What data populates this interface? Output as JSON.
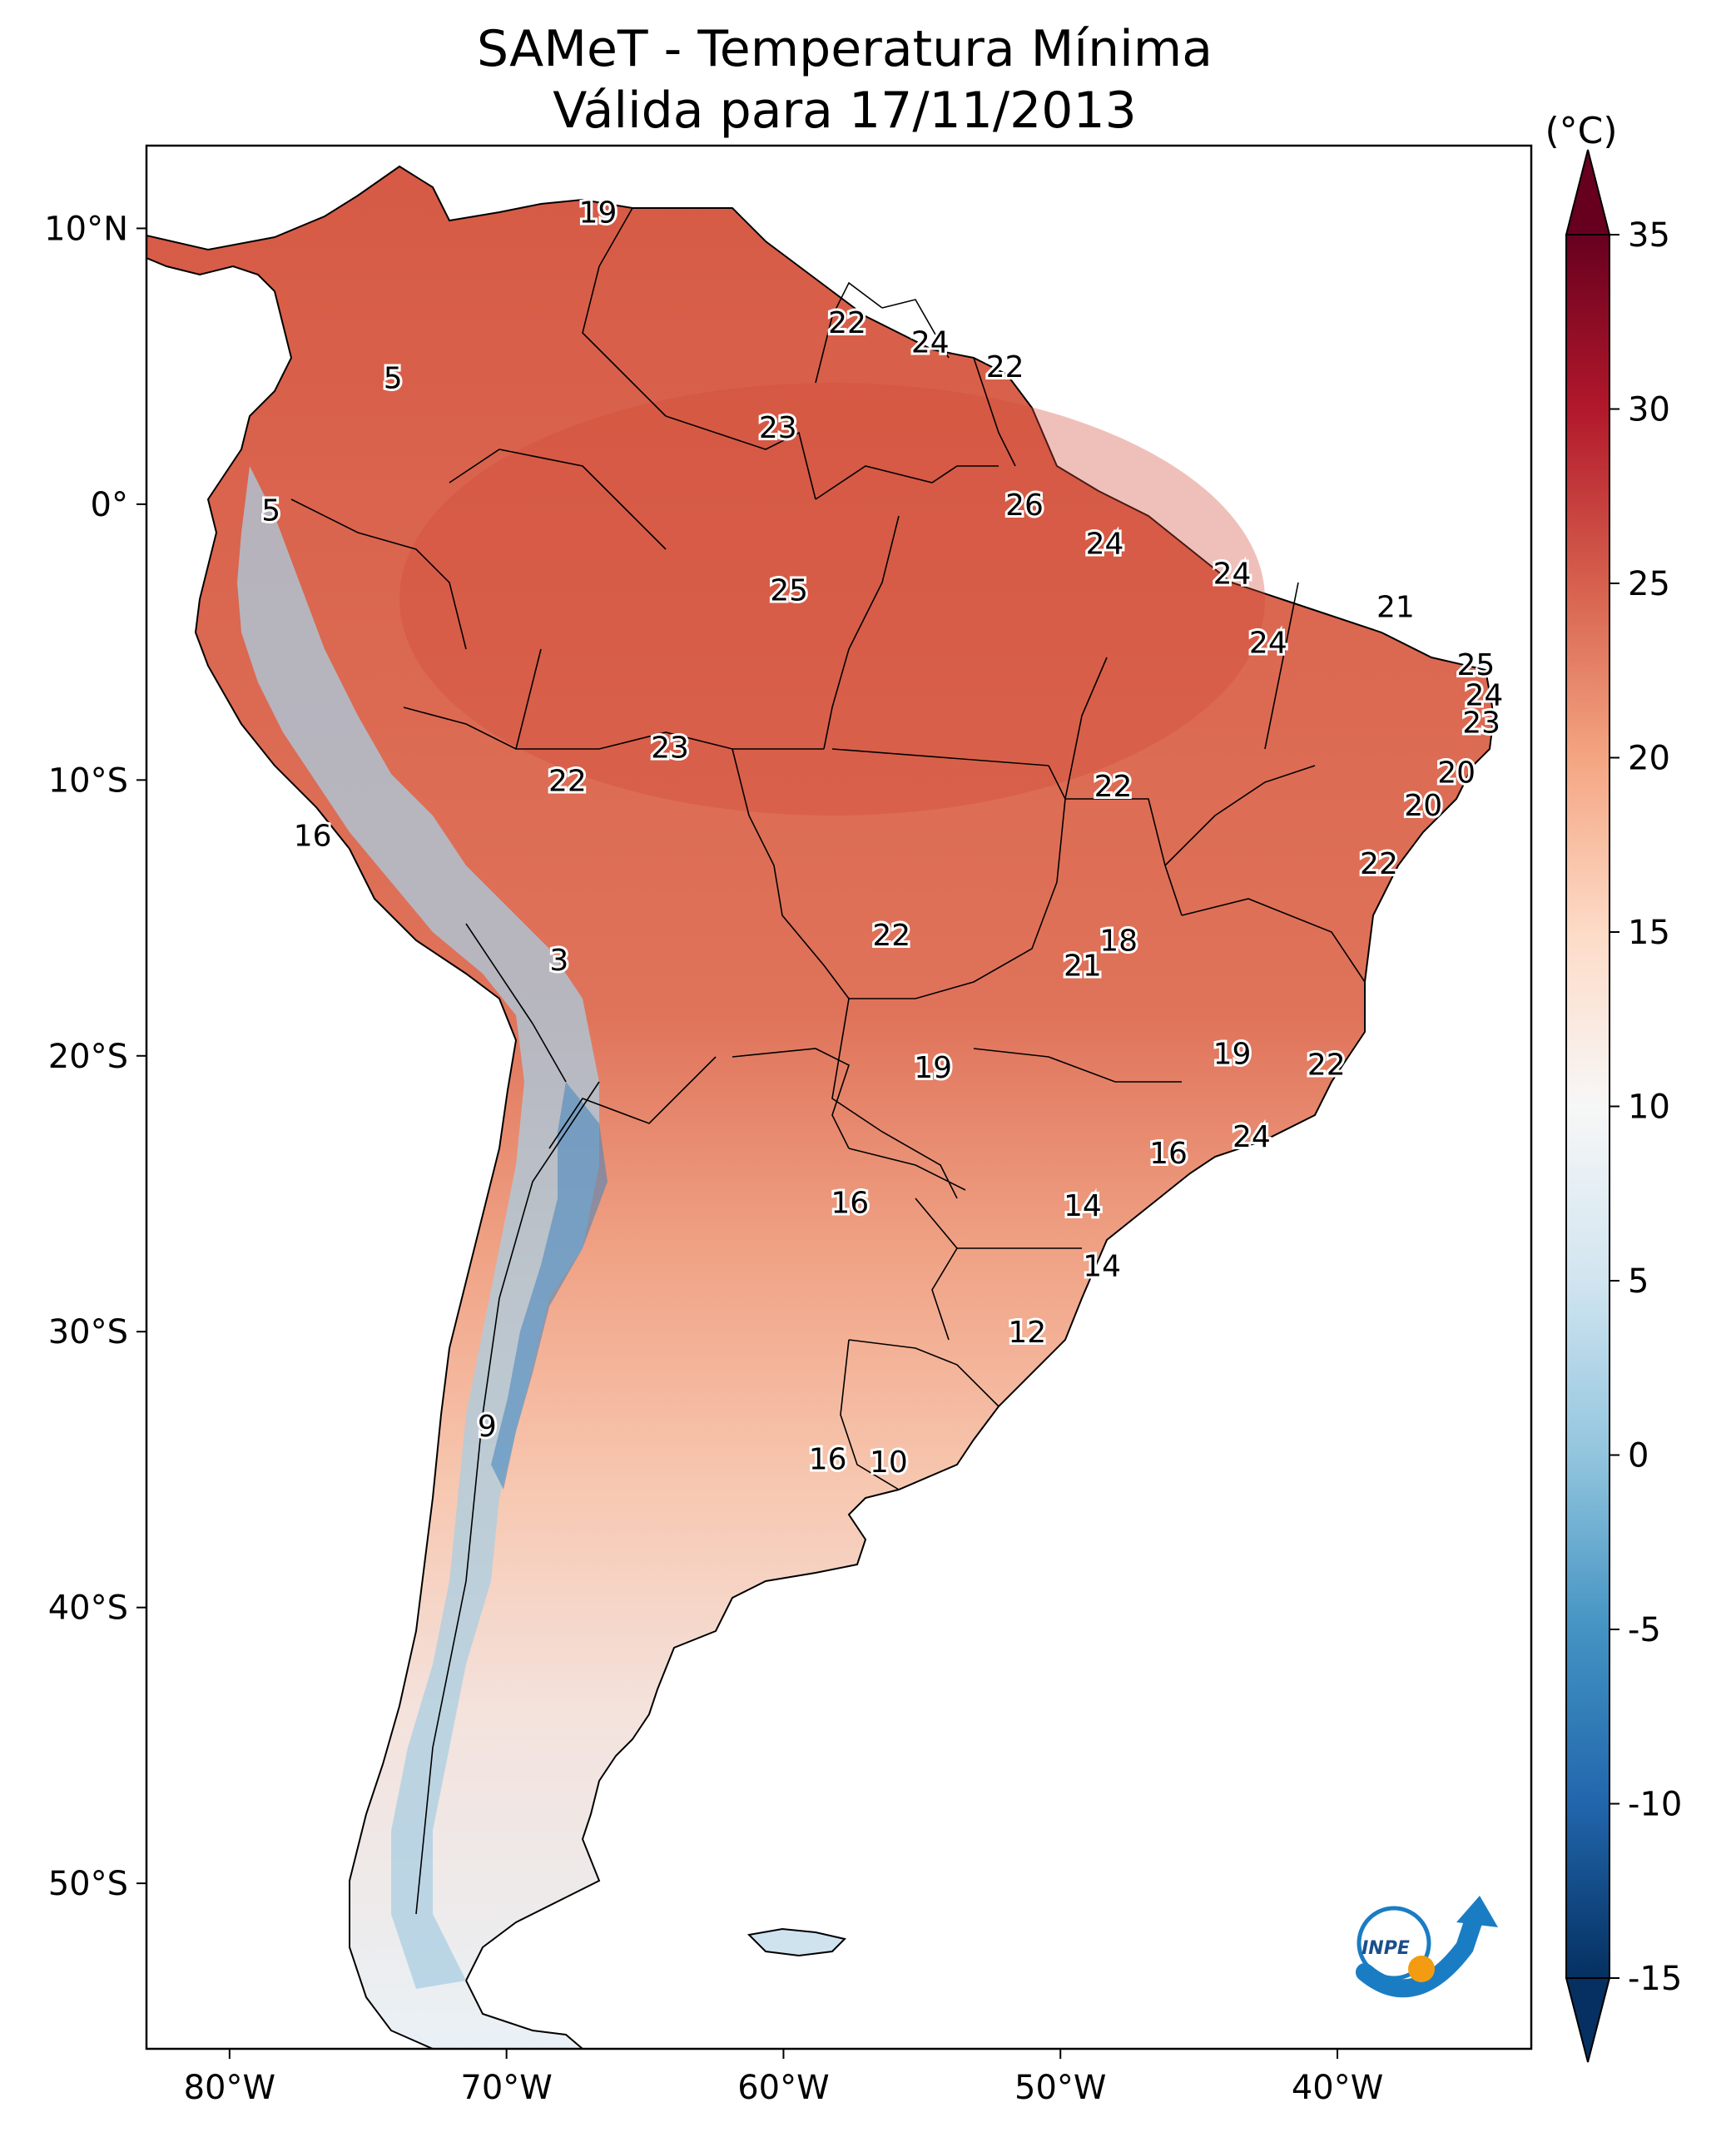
{
  "title": {
    "line1": "SAMeT - Temperatura Mínima",
    "line2": "Válida para 17/11/2013"
  },
  "map": {
    "lon_range": [
      -83,
      -33
    ],
    "lat_range": [
      -56,
      13
    ],
    "lon_ticks": [
      {
        "value": -80,
        "label": "80°W"
      },
      {
        "value": -70,
        "label": "70°W"
      },
      {
        "value": -60,
        "label": "60°W"
      },
      {
        "value": -50,
        "label": "50°W"
      },
      {
        "value": -40,
        "label": "40°W"
      }
    ],
    "lat_ticks": [
      {
        "value": 10,
        "label": "10°N"
      },
      {
        "value": 0,
        "label": "0°"
      },
      {
        "value": -10,
        "label": "10°S"
      },
      {
        "value": -20,
        "label": "20°S"
      },
      {
        "value": -30,
        "label": "30°S"
      },
      {
        "value": -40,
        "label": "40°S"
      },
      {
        "value": -50,
        "label": "50°S"
      }
    ],
    "point_labels": [
      {
        "lon": -66.7,
        "lat": 10.6,
        "text": "19"
      },
      {
        "lon": -57.7,
        "lat": 6.6,
        "text": "22"
      },
      {
        "lon": -54.7,
        "lat": 5.9,
        "text": "24"
      },
      {
        "lon": -52.0,
        "lat": 5.0,
        "text": "22"
      },
      {
        "lon": -60.2,
        "lat": 2.8,
        "text": "23"
      },
      {
        "lon": -74.1,
        "lat": 4.6,
        "text": "5"
      },
      {
        "lon": -78.5,
        "lat": -0.2,
        "text": "5"
      },
      {
        "lon": -51.3,
        "lat": 0.0,
        "text": "26"
      },
      {
        "lon": -48.4,
        "lat": -1.4,
        "text": "24"
      },
      {
        "lon": -43.8,
        "lat": -2.5,
        "text": "24"
      },
      {
        "lon": -59.8,
        "lat": -3.1,
        "text": "25"
      },
      {
        "lon": -37.9,
        "lat": -3.7,
        "text": "21"
      },
      {
        "lon": -42.5,
        "lat": -5.0,
        "text": "24"
      },
      {
        "lon": -35.0,
        "lat": -5.8,
        "text": "25"
      },
      {
        "lon": -34.7,
        "lat": -6.9,
        "text": "24"
      },
      {
        "lon": -34.8,
        "lat": -7.9,
        "text": "23"
      },
      {
        "lon": -64.1,
        "lat": -8.8,
        "text": "23"
      },
      {
        "lon": -67.8,
        "lat": -10.0,
        "text": "22"
      },
      {
        "lon": -48.1,
        "lat": -10.2,
        "text": "22"
      },
      {
        "lon": -35.7,
        "lat": -9.7,
        "text": "20"
      },
      {
        "lon": -36.9,
        "lat": -10.9,
        "text": "20"
      },
      {
        "lon": -77.0,
        "lat": -12.0,
        "text": "16"
      },
      {
        "lon": -38.5,
        "lat": -13.0,
        "text": "22"
      },
      {
        "lon": -56.1,
        "lat": -15.6,
        "text": "22"
      },
      {
        "lon": -47.9,
        "lat": -15.8,
        "text": "18"
      },
      {
        "lon": -49.2,
        "lat": -16.7,
        "text": "21"
      },
      {
        "lon": -68.1,
        "lat": -16.5,
        "text": "3"
      },
      {
        "lon": -54.6,
        "lat": -20.4,
        "text": "19"
      },
      {
        "lon": -43.8,
        "lat": -19.9,
        "text": "19"
      },
      {
        "lon": -40.4,
        "lat": -20.3,
        "text": "22"
      },
      {
        "lon": -43.1,
        "lat": -22.9,
        "text": "24"
      },
      {
        "lon": -46.1,
        "lat": -23.5,
        "text": "16"
      },
      {
        "lon": -57.6,
        "lat": -25.3,
        "text": "16"
      },
      {
        "lon": -49.2,
        "lat": -25.4,
        "text": "14"
      },
      {
        "lon": -48.5,
        "lat": -27.6,
        "text": "14"
      },
      {
        "lon": -51.2,
        "lat": -30.0,
        "text": "12"
      },
      {
        "lon": -70.7,
        "lat": -33.4,
        "text": "9"
      },
      {
        "lon": -58.4,
        "lat": -34.6,
        "text": "16"
      },
      {
        "lon": -56.2,
        "lat": -34.7,
        "text": "10"
      }
    ]
  },
  "colorbar": {
    "unit": "(°C)",
    "min": -15,
    "max": 35,
    "ticks": [
      {
        "value": 35,
        "label": "35"
      },
      {
        "value": 30,
        "label": "30"
      },
      {
        "value": 25,
        "label": "25"
      },
      {
        "value": 20,
        "label": "20"
      },
      {
        "value": 15,
        "label": "15"
      },
      {
        "value": 10,
        "label": "10"
      },
      {
        "value": 5,
        "label": "5"
      },
      {
        "value": 0,
        "label": "0"
      },
      {
        "value": -5,
        "label": "-5"
      },
      {
        "value": -10,
        "label": "-10"
      },
      {
        "value": -15,
        "label": "-15"
      }
    ]
  },
  "logo": {
    "text": "INPE",
    "colors": {
      "primary": "#1a7dc4",
      "accent": "#f39c12"
    }
  }
}
